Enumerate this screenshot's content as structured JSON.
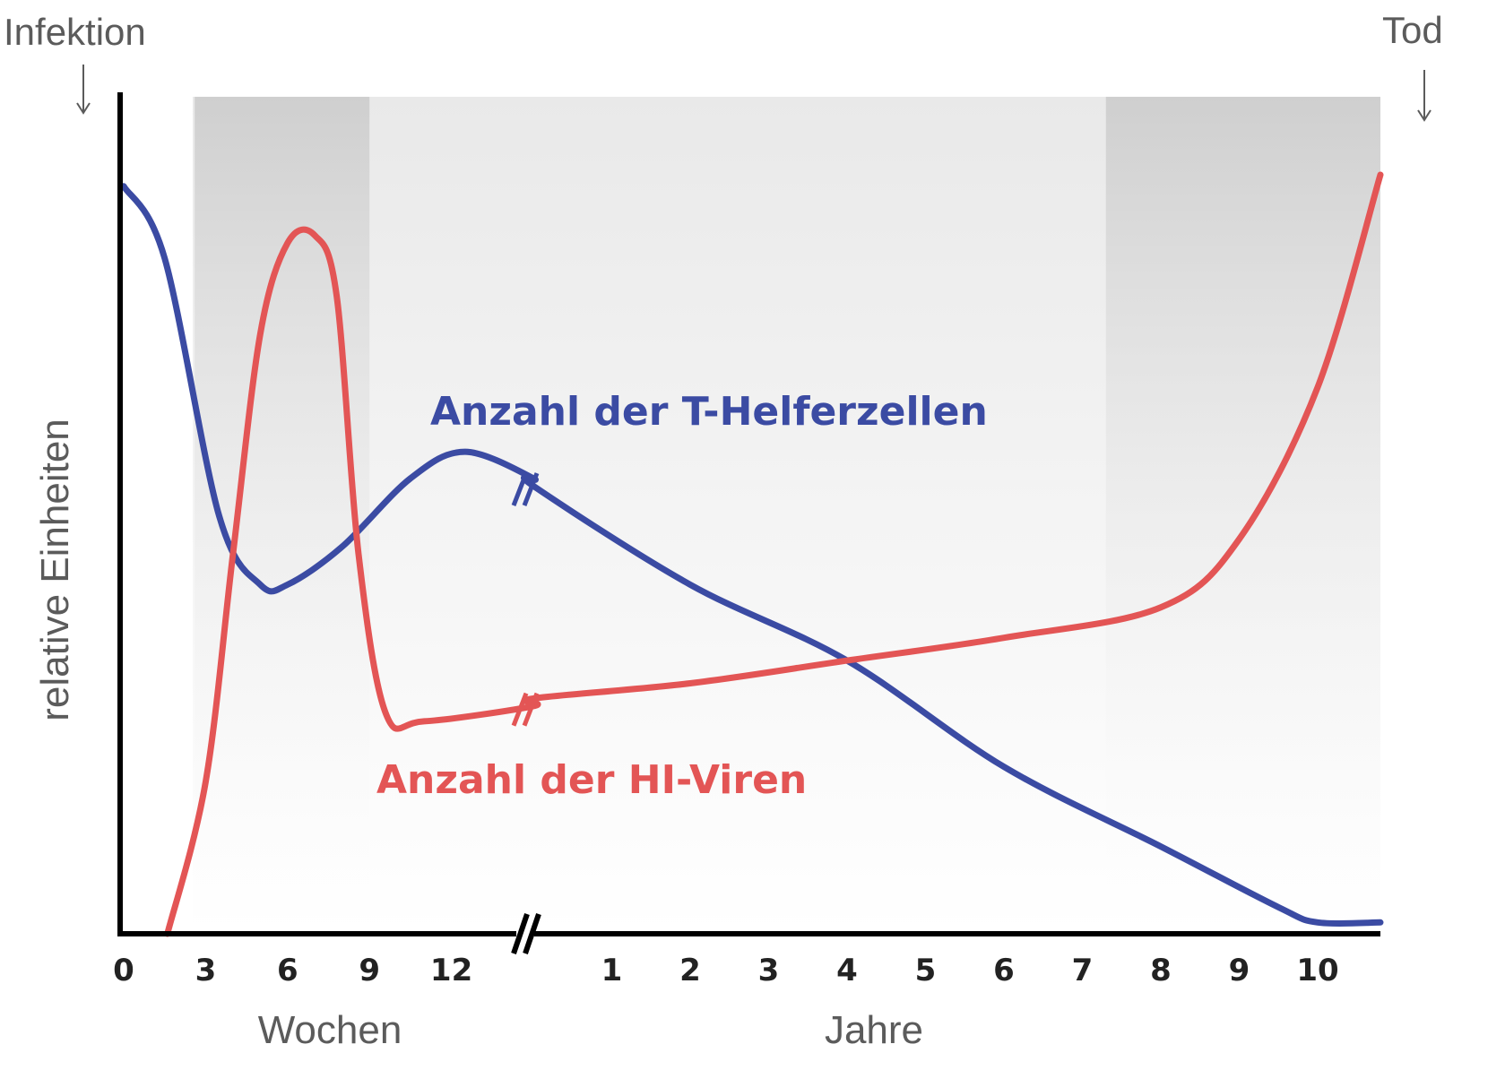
{
  "chart_data": {
    "type": "line",
    "title": "",
    "ylabel": "relative Einheiten",
    "x_segments": [
      {
        "unit": "Wochen",
        "ticks": [
          "0",
          "3",
          "6",
          "9",
          "12"
        ],
        "range": [
          0,
          15
        ]
      },
      {
        "unit": "Jahre",
        "ticks": [
          "1",
          "2",
          "3",
          "4",
          "5",
          "6",
          "7",
          "8",
          "9",
          "10"
        ],
        "range": [
          0,
          10.8
        ]
      }
    ],
    "axis_break": true,
    "ylim": [
      0,
      1
    ],
    "grid": false,
    "annotations": {
      "start": "Infektion",
      "end": "Tod"
    },
    "shaded_phases": [
      {
        "segment": 0,
        "from": 2.6,
        "to": 9.0,
        "color": "#cccccc"
      },
      {
        "segment": 1,
        "from": 7.3,
        "to": 10.8,
        "color": "#cccccc"
      }
    ],
    "series": [
      {
        "name": "Anzahl der T-Helferzellen",
        "color": "#3b4ba3",
        "points": [
          {
            "seg": 0,
            "x": 0,
            "y": 0.985
          },
          {
            "seg": 0,
            "x": 1.5,
            "y": 0.89
          },
          {
            "seg": 0,
            "x": 3.5,
            "y": 0.55
          },
          {
            "seg": 0,
            "x": 5.0,
            "y": 0.46
          },
          {
            "seg": 0,
            "x": 6.0,
            "y": 0.46
          },
          {
            "seg": 0,
            "x": 8.0,
            "y": 0.51
          },
          {
            "seg": 0,
            "x": 10.5,
            "y": 0.6
          },
          {
            "seg": 0,
            "x": 12.5,
            "y": 0.635
          },
          {
            "seg": 0,
            "x": 15.0,
            "y": 0.6
          },
          {
            "seg": 1,
            "x": 0.0,
            "y": 0.59
          },
          {
            "seg": 1,
            "x": 2.0,
            "y": 0.46
          },
          {
            "seg": 1,
            "x": 4.0,
            "y": 0.36
          },
          {
            "seg": 1,
            "x": 6.0,
            "y": 0.22
          },
          {
            "seg": 1,
            "x": 8.0,
            "y": 0.115
          },
          {
            "seg": 1,
            "x": 9.5,
            "y": 0.035
          },
          {
            "seg": 1,
            "x": 10.0,
            "y": 0.015
          },
          {
            "seg": 1,
            "x": 10.8,
            "y": 0.015
          }
        ]
      },
      {
        "name": "Anzahl der HI-Viren",
        "color": "#e35555",
        "points": [
          {
            "seg": 0,
            "x": 1.6,
            "y": 0.0
          },
          {
            "seg": 0,
            "x": 3.0,
            "y": 0.2
          },
          {
            "seg": 0,
            "x": 4.0,
            "y": 0.5
          },
          {
            "seg": 0,
            "x": 5.0,
            "y": 0.79
          },
          {
            "seg": 0,
            "x": 6.0,
            "y": 0.91
          },
          {
            "seg": 0,
            "x": 7.0,
            "y": 0.92
          },
          {
            "seg": 0,
            "x": 7.8,
            "y": 0.84
          },
          {
            "seg": 0,
            "x": 8.6,
            "y": 0.5
          },
          {
            "seg": 0,
            "x": 9.6,
            "y": 0.29
          },
          {
            "seg": 0,
            "x": 11.0,
            "y": 0.28
          },
          {
            "seg": 0,
            "x": 15.0,
            "y": 0.3
          },
          {
            "seg": 1,
            "x": 0.0,
            "y": 0.31
          },
          {
            "seg": 1,
            "x": 2.0,
            "y": 0.33
          },
          {
            "seg": 1,
            "x": 4.0,
            "y": 0.36
          },
          {
            "seg": 1,
            "x": 6.0,
            "y": 0.39
          },
          {
            "seg": 1,
            "x": 8.0,
            "y": 0.43
          },
          {
            "seg": 1,
            "x": 9.0,
            "y": 0.52
          },
          {
            "seg": 1,
            "x": 10.0,
            "y": 0.72
          },
          {
            "seg": 1,
            "x": 10.8,
            "y": 1.0
          }
        ]
      }
    ]
  }
}
